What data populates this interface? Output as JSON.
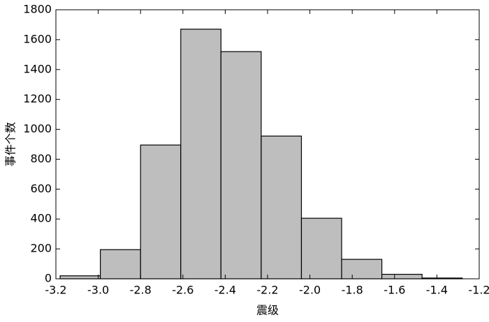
{
  "chart_data": {
    "type": "histogram",
    "xlabel": "震级",
    "ylabel": "事件个数",
    "bins": [
      -3.18,
      -2.99,
      -2.8,
      -2.61,
      -2.42,
      -2.23,
      -2.04,
      -1.85,
      -1.66,
      -1.47,
      -1.28
    ],
    "values": [
      20,
      195,
      895,
      1670,
      1520,
      955,
      405,
      130,
      30,
      5
    ],
    "color": "#bebebe",
    "xlim": [
      -3.2,
      -1.2
    ],
    "xticks": [
      -3.2,
      {
        "value": -3.0,
        "label": "-3.0"
      },
      -2.8,
      -2.6,
      -2.4,
      -2.2,
      {
        "value": -2.0,
        "label": "-2.0"
      },
      -1.8,
      -1.6,
      -1.4,
      -1.2
    ],
    "ylim": [
      0,
      1800
    ],
    "yticks": [
      0,
      200,
      400,
      600,
      800,
      1000,
      1200,
      1400,
      1600,
      1800
    ]
  }
}
